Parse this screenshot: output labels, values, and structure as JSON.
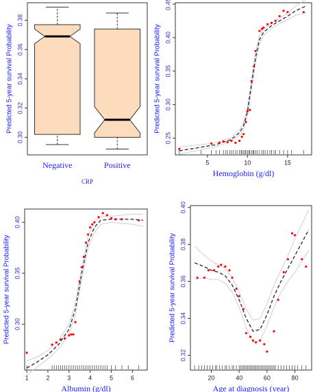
{
  "chart_data": [
    {
      "type": "box",
      "x_label": "CRP",
      "y_label": "Predicted 5-year survival Probability",
      "categories": [
        "Negative",
        "Positive"
      ],
      "color": "#fcdcbc",
      "boxes": [
        {
          "whislo": 0.295,
          "q1": 0.302,
          "notch_lo": 0.364,
          "median": 0.369,
          "notch_hi": 0.374,
          "q3": 0.377,
          "whishi": 0.389
        },
        {
          "whislo": 0.292,
          "q1": 0.3,
          "notch_lo": 0.303,
          "median": 0.312,
          "notch_hi": 0.321,
          "q3": 0.374,
          "whishi": 0.385
        }
      ],
      "ylim": [
        0.288,
        0.392
      ],
      "yticks": [
        {
          "value": 0.3,
          "label": "0.30"
        },
        0.32,
        0.34,
        0.36,
        0.38
      ]
    },
    {
      "type": "scatter",
      "x_label": "Hemoglobin (g/dl)",
      "y_label": "Predicted 5-year survival Probability",
      "xlim": [
        1,
        18
      ],
      "xticks": [
        5,
        10,
        15
      ],
      "ylim": [
        0.225,
        0.452
      ],
      "yticks": [
        0.25,
        {
          "value": 0.3,
          "label": "0.30"
        },
        0.35,
        {
          "value": 0.4,
          "label": "0.40"
        },
        0.45
      ],
      "series": [
        {
          "style": "points",
          "color": "#ff0000",
          "x": [
            1.5,
            5.5,
            6.5,
            7,
            7.5,
            8,
            8.5,
            9,
            9.3,
            9.5,
            9.8,
            10,
            10.3,
            10.5,
            10.8,
            11,
            11.5,
            11.8,
            12,
            12.5,
            13,
            13.5,
            14,
            14.5,
            15,
            17
          ],
          "values": [
            0.234,
            0.242,
            0.243,
            0.245,
            0.244,
            0.246,
            0.243,
            0.246,
            0.252,
            0.256,
            0.274,
            0.29,
            0.292,
            0.335,
            0.357,
            0.38,
            0.41,
            0.413,
            0.415,
            0.42,
            0.422,
            0.425,
            0.432,
            0.44,
            0.438,
            0.438
          ]
        },
        {
          "style": "fit",
          "color": "#333333",
          "x": [
            1.5,
            4,
            6,
            8,
            9,
            9.5,
            10,
            10.5,
            11,
            11.5,
            12,
            13,
            14,
            15,
            16,
            17.3
          ],
          "values": [
            0.231,
            0.236,
            0.24,
            0.248,
            0.258,
            0.268,
            0.29,
            0.33,
            0.37,
            0.397,
            0.408,
            0.418,
            0.425,
            0.432,
            0.44,
            0.447
          ]
        },
        {
          "style": "band",
          "color": "#c8c8e0",
          "x": [
            1.5,
            4,
            6,
            8,
            9,
            9.5,
            10,
            10.5,
            11,
            11.5,
            12,
            13,
            14,
            15,
            16,
            17.3
          ],
          "values": [
            0.226,
            0.232,
            0.237,
            0.245,
            0.254,
            0.263,
            0.283,
            0.322,
            0.362,
            0.391,
            0.403,
            0.414,
            0.421,
            0.427,
            0.433,
            0.437
          ]
        },
        {
          "style": "band",
          "color": "#c8c8e0",
          "x": [
            1.5,
            4,
            6,
            8,
            9,
            9.5,
            10,
            10.5,
            11,
            11.5,
            12,
            13,
            14,
            15,
            16,
            17.3
          ],
          "values": [
            0.237,
            0.24,
            0.243,
            0.251,
            0.262,
            0.273,
            0.297,
            0.338,
            0.378,
            0.403,
            0.413,
            0.422,
            0.429,
            0.437,
            0.447,
            0.457
          ]
        }
      ],
      "rug": [
        1.5,
        4.2,
        5.5,
        6.1,
        6.5,
        7,
        7.3,
        7.5,
        7.8,
        8,
        8.2,
        8.5,
        8.7,
        9,
        9.2,
        9.3,
        9.5,
        9.7,
        9.8,
        10,
        10.2,
        10.3,
        10.5,
        10.7,
        10.8,
        11,
        11.2,
        11.5,
        11.8,
        12,
        12.2,
        12.5,
        12.8,
        13,
        13.3,
        13.5,
        14,
        14.5,
        15,
        15.5,
        17
      ]
    },
    {
      "type": "scatter",
      "x_label": "Albumin (g/dl)",
      "y_label": "Predicted 5-year survival Probability",
      "xlim": [
        0.9,
        6.7
      ],
      "xticks": [
        1,
        2,
        3,
        4,
        5,
        6
      ],
      "ylim": [
        0.255,
        0.413
      ],
      "yticks": [
        {
          "value": 0.3,
          "label": "0.30"
        },
        0.35,
        {
          "value": 0.4,
          "label": "0.40"
        }
      ],
      "series": [
        {
          "style": "points",
          "color": "#ff0000",
          "x": [
            1,
            2.2,
            2.4,
            2.6,
            2.8,
            3,
            3.1,
            3.2,
            3.3,
            3.5,
            3.6,
            3.7,
            3.8,
            3.9,
            4,
            4.1,
            4.2,
            4.4,
            4.6,
            4.8,
            5,
            5.2,
            5.5,
            6.3
          ],
          "values": [
            0.272,
            0.28,
            0.282,
            0.285,
            0.286,
            0.289,
            0.29,
            0.29,
            0.302,
            0.342,
            0.356,
            0.366,
            0.38,
            0.388,
            0.395,
            0.398,
            0.4,
            0.405,
            0.409,
            0.407,
            0.404,
            0.403,
            0.403,
            0.402
          ]
        },
        {
          "style": "fit",
          "color": "#333333",
          "x": [
            1,
            1.5,
            2,
            2.5,
            3,
            3.3,
            3.6,
            3.9,
            4.2,
            4.5,
            5,
            5.5,
            6,
            6.5
          ],
          "values": [
            0.257,
            0.263,
            0.27,
            0.28,
            0.295,
            0.315,
            0.35,
            0.38,
            0.395,
            0.402,
            0.403,
            0.403,
            0.403,
            0.402
          ]
        },
        {
          "style": "band",
          "color": "#c8c8e0",
          "x": [
            1,
            1.5,
            2,
            2.5,
            3,
            3.3,
            3.6,
            3.9,
            4.2,
            4.5,
            5,
            5.5,
            6,
            6.5
          ],
          "values": [
            0.25,
            0.258,
            0.266,
            0.276,
            0.29,
            0.309,
            0.344,
            0.374,
            0.39,
            0.398,
            0.4,
            0.399,
            0.398,
            0.396
          ]
        },
        {
          "style": "band",
          "color": "#c8c8e0",
          "x": [
            1,
            1.5,
            2,
            2.5,
            3,
            3.3,
            3.6,
            3.9,
            4.2,
            4.5,
            5,
            5.5,
            6,
            6.5
          ],
          "values": [
            0.264,
            0.268,
            0.274,
            0.284,
            0.3,
            0.321,
            0.356,
            0.386,
            0.4,
            0.406,
            0.406,
            0.407,
            0.408,
            0.408
          ]
        }
      ],
      "rug": [
        1,
        2.2,
        2.3,
        2.4,
        2.5,
        2.6,
        2.7,
        2.8,
        2.9,
        3,
        3.1,
        3.2,
        3.3,
        3.4,
        3.5,
        3.6,
        3.7,
        3.8,
        3.9,
        4,
        4.1,
        4.2,
        4.3,
        4.4,
        4.5,
        4.6,
        4.7,
        4.8,
        5,
        5.2,
        5.5,
        5.8,
        6.3
      ]
    },
    {
      "type": "scatter",
      "x_label": "Age at diagnosis (year)",
      "y_label": "Predicted 5-year survival Probability",
      "xlim": [
        5,
        92
      ],
      "xticks": [
        20,
        40,
        60,
        80
      ],
      "ylim": [
        0.312,
        0.401
      ],
      "yticks": [
        0.32,
        0.34,
        0.36,
        0.38,
        {
          "value": 0.4,
          "label": "0.40"
        }
      ],
      "series": [
        {
          "style": "points",
          "color": "#ff0000",
          "x": [
            10,
            15,
            18,
            22,
            25,
            27,
            30,
            33,
            35,
            38,
            40,
            43,
            45,
            48,
            50,
            52,
            55,
            58,
            60,
            65,
            68,
            72,
            75,
            78,
            80,
            85,
            88
          ],
          "values": [
            0.362,
            0.362,
            0.366,
            0.366,
            0.368,
            0.369,
            0.368,
            0.366,
            0.362,
            0.356,
            0.352,
            0.345,
            0.332,
            0.33,
            0.328,
            0.327,
            0.328,
            0.326,
            0.322,
            0.333,
            0.35,
            0.365,
            0.372,
            0.386,
            0.385,
            0.372,
            0.368
          ]
        },
        {
          "style": "fit",
          "color": "#333333",
          "x": [
            8,
            15,
            20,
            25,
            30,
            35,
            40,
            45,
            50,
            55,
            60,
            65,
            70,
            75,
            80,
            85,
            90
          ],
          "values": [
            0.37,
            0.368,
            0.366,
            0.365,
            0.363,
            0.358,
            0.35,
            0.34,
            0.333,
            0.334,
            0.342,
            0.352,
            0.36,
            0.367,
            0.374,
            0.381,
            0.388
          ]
        },
        {
          "style": "band",
          "color": "#c8c8e0",
          "x": [
            8,
            15,
            20,
            25,
            30,
            35,
            40,
            45,
            50,
            55,
            60,
            65,
            70,
            75,
            80,
            85,
            90
          ],
          "values": [
            0.361,
            0.362,
            0.361,
            0.361,
            0.359,
            0.354,
            0.346,
            0.335,
            0.327,
            0.328,
            0.336,
            0.346,
            0.354,
            0.36,
            0.365,
            0.371,
            0.377
          ]
        },
        {
          "style": "band",
          "color": "#c8c8e0",
          "x": [
            8,
            15,
            20,
            25,
            30,
            35,
            40,
            45,
            50,
            55,
            60,
            65,
            70,
            75,
            80,
            85,
            90
          ],
          "values": [
            0.379,
            0.374,
            0.371,
            0.369,
            0.367,
            0.362,
            0.354,
            0.345,
            0.339,
            0.34,
            0.348,
            0.358,
            0.366,
            0.374,
            0.383,
            0.391,
            0.399
          ]
        }
      ],
      "rug": [
        8,
        11,
        13,
        15,
        17,
        19,
        21,
        23,
        24,
        26,
        28,
        30,
        31,
        33,
        35,
        36,
        38,
        40,
        41,
        42,
        43,
        44,
        45,
        46,
        47,
        48,
        49,
        50,
        51,
        52,
        53,
        54,
        55,
        56,
        57,
        58,
        59,
        60,
        61,
        62,
        63,
        64,
        65,
        66,
        68,
        70,
        72,
        74,
        76,
        78,
        80,
        82,
        85,
        88
      ]
    }
  ]
}
